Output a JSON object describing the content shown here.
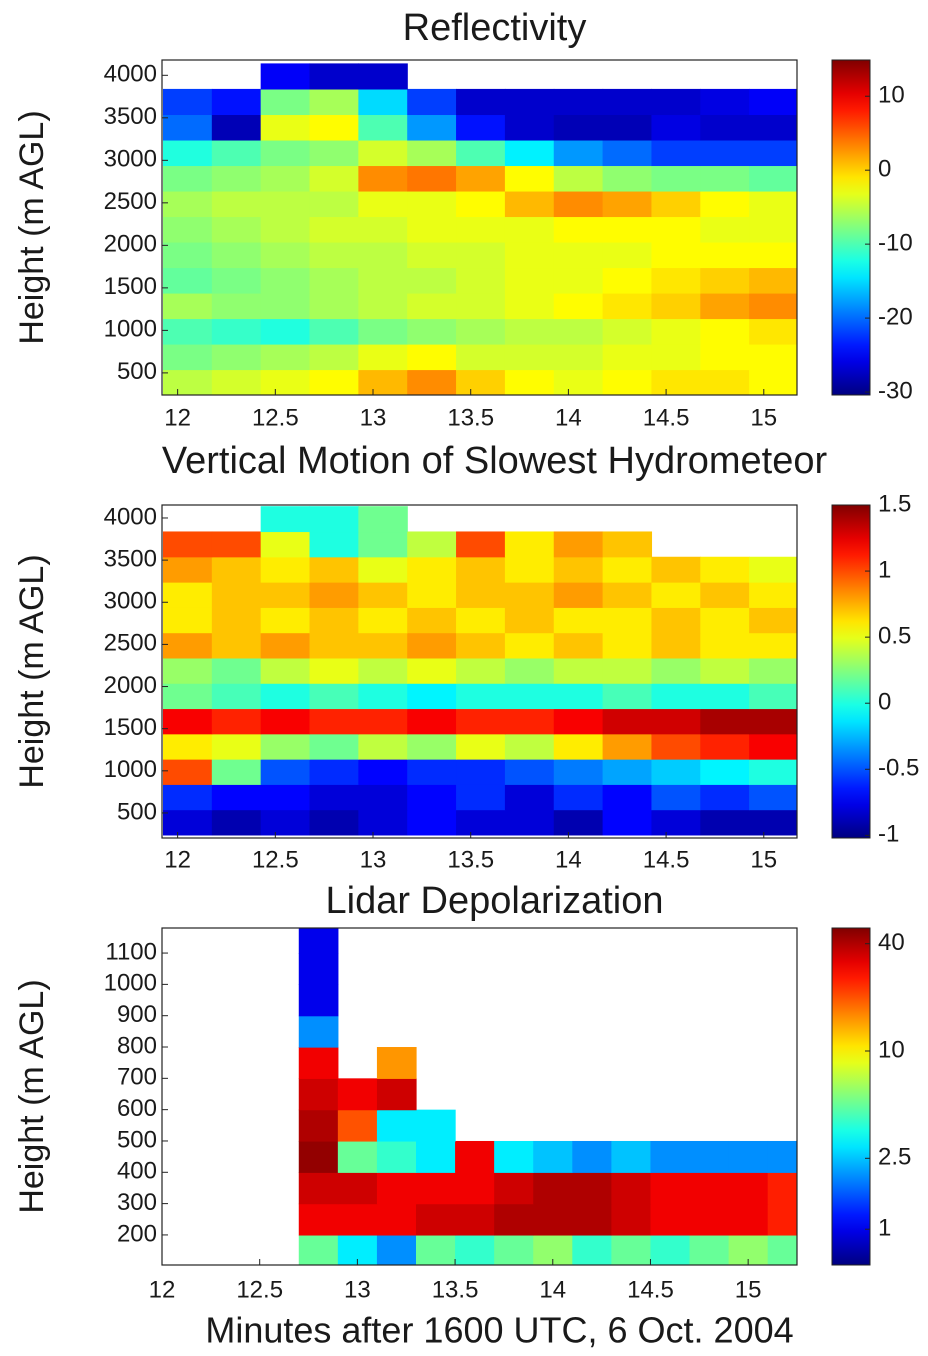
{
  "chart_data": [
    {
      "type": "heatmap",
      "title": "Reflectivity",
      "y_label": "Height (m AGL)",
      "colormap": "jet",
      "x": [
        12.05,
        12.3,
        12.55,
        12.8,
        13.05,
        13.3,
        13.55,
        13.8,
        14.05,
        14.3,
        14.55,
        14.8,
        15.05
      ],
      "y": [
        390,
        690,
        990,
        1290,
        1590,
        1890,
        2190,
        2490,
        2790,
        3090,
        3390,
        3690,
        3990
      ],
      "z": [
        [
          -5,
          -4,
          -3,
          -2,
          1,
          3,
          0,
          -2,
          -3,
          -2,
          -1,
          -1,
          -2
        ],
        [
          -8,
          -7,
          -6,
          -5,
          -3,
          -2,
          -4,
          -4,
          -4,
          -3,
          -3,
          -2,
          -2
        ],
        [
          -10,
          -11,
          -12,
          -10,
          -8,
          -7,
          -6,
          -5,
          -5,
          -4,
          -3,
          -2,
          -1
        ],
        [
          -6,
          -7,
          -7,
          -6,
          -5,
          -4,
          -4,
          -3,
          -2,
          -1,
          0,
          2,
          3
        ],
        [
          -9,
          -8,
          -7,
          -6,
          -5,
          -5,
          -4,
          -3,
          -3,
          -2,
          -1,
          0,
          1
        ],
        [
          -8,
          -7,
          -6,
          -5,
          -5,
          -4,
          -4,
          -3,
          -3,
          -3,
          -2,
          -2,
          -2
        ],
        [
          -7,
          -6,
          -5,
          -4,
          -4,
          -3,
          -3,
          -3,
          -2,
          -2,
          -2,
          -3,
          -3
        ],
        [
          -6,
          -5,
          -5,
          -5,
          -3,
          -3,
          -2,
          1,
          3,
          2,
          0,
          -2,
          -3
        ],
        [
          -8,
          -7,
          -6,
          -4,
          3,
          4,
          2,
          -2,
          -5,
          -7,
          -8,
          -8,
          -9
        ],
        [
          -12,
          -10,
          -8,
          -7,
          -4,
          -6,
          -10,
          -14,
          -18,
          -20,
          -22,
          -22,
          -22
        ],
        [
          -20,
          -28,
          -3,
          -2,
          -10,
          -18,
          -24,
          -27,
          -28,
          -28,
          -26,
          -27,
          -27
        ],
        [
          -22,
          -24,
          -8,
          -6,
          -15,
          -22,
          -27,
          -27,
          -27,
          -27,
          -27,
          -26,
          -25
        ],
        [
          null,
          null,
          -25,
          -27,
          -27,
          null,
          null,
          null,
          null,
          null,
          null,
          null,
          null
        ]
      ],
      "xlim": [
        11.92,
        15.17
      ],
      "ylim": [
        240,
        4180
      ],
      "xticks": [
        12,
        12.5,
        13,
        13.5,
        14,
        14.5,
        15
      ],
      "yticks": [
        500,
        1000,
        1500,
        2000,
        2500,
        3000,
        3500,
        4000
      ],
      "colorbar": {
        "clim": [
          -30.4,
          14.9
        ],
        "ticks": [
          -30,
          -20,
          -10,
          0,
          10
        ],
        "log_scale": false
      }
    },
    {
      "type": "heatmap",
      "title": "Vertical Motion of Slowest Hydrometeor",
      "y_label": "Height (m AGL)",
      "colormap": "jet",
      "x": [
        12.05,
        12.3,
        12.55,
        12.8,
        13.05,
        13.3,
        13.55,
        13.8,
        14.05,
        14.3,
        14.55,
        14.8,
        15.05
      ],
      "y": [
        390,
        690,
        990,
        1290,
        1590,
        1890,
        2190,
        2490,
        2790,
        3090,
        3390,
        3690,
        3990
      ],
      "z": [
        [
          -0.8,
          -0.9,
          -0.8,
          -0.9,
          -0.8,
          -0.7,
          -0.8,
          -0.8,
          -0.9,
          -0.7,
          -0.8,
          -0.9,
          -0.9
        ],
        [
          -0.6,
          -0.7,
          -0.7,
          -0.8,
          -0.8,
          -0.7,
          -0.6,
          -0.8,
          -0.6,
          -0.7,
          -0.5,
          -0.6,
          -0.5
        ],
        [
          1,
          0.2,
          -0.5,
          -0.6,
          -0.7,
          -0.6,
          -0.6,
          -0.5,
          -0.4,
          -0.3,
          -0.2,
          -0.1,
          0
        ],
        [
          0.6,
          0.5,
          0.3,
          0.2,
          0.4,
          0.3,
          0.5,
          0.4,
          0.6,
          0.8,
          1,
          1.1,
          1.2
        ],
        [
          1.2,
          1.1,
          1.2,
          1.1,
          1.1,
          1.2,
          1.1,
          1.1,
          1.2,
          1.3,
          1.3,
          1.4,
          1.4
        ],
        [
          0.2,
          0.1,
          0,
          0.1,
          0,
          -0.1,
          0,
          0,
          0,
          0.1,
          0,
          0,
          0.1
        ],
        [
          0.3,
          0.2,
          0.4,
          0.5,
          0.4,
          0.5,
          0.4,
          0.3,
          0.4,
          0.4,
          0.3,
          0.4,
          0.3
        ],
        [
          0.8,
          0.7,
          0.8,
          0.7,
          0.7,
          0.8,
          0.7,
          0.6,
          0.7,
          0.6,
          0.7,
          0.6,
          0.6
        ],
        [
          0.6,
          0.7,
          0.6,
          0.7,
          0.6,
          0.7,
          0.6,
          0.7,
          0.6,
          0.6,
          0.7,
          0.6,
          0.7
        ],
        [
          0.6,
          0.7,
          0.7,
          0.8,
          0.7,
          0.6,
          0.7,
          0.7,
          0.8,
          0.7,
          0.6,
          0.7,
          0.6
        ],
        [
          0.8,
          0.7,
          0.6,
          0.7,
          0.5,
          0.6,
          0.7,
          0.6,
          0.7,
          0.6,
          0.7,
          0.6,
          0.5
        ],
        [
          1,
          1,
          0.5,
          0,
          0.2,
          0.4,
          1,
          0.6,
          0.8,
          0.7,
          null,
          null,
          null
        ],
        [
          null,
          null,
          0,
          0,
          0.2,
          null,
          null,
          null,
          null,
          null,
          null,
          null,
          null
        ]
      ],
      "xlim": [
        11.92,
        15.17
      ],
      "ylim": [
        203,
        4154
      ],
      "xticks": [
        12,
        12.5,
        13,
        13.5,
        14,
        14.5,
        15
      ],
      "yticks": [
        500,
        1000,
        1500,
        2000,
        2500,
        3000,
        3500,
        4000
      ],
      "colorbar": {
        "clim": [
          -1.02,
          1.5
        ],
        "ticks": [
          -1,
          -0.5,
          0,
          0.5,
          1,
          1.5
        ],
        "log_scale": false
      }
    },
    {
      "type": "heatmap",
      "title": "Lidar Depolarization",
      "y_label": "Height (m AGL)",
      "x_label": "Minutes after 1600 UTC, 6 Oct. 2004",
      "colormap": "jet",
      "x": [
        12.8,
        13.0,
        13.2,
        13.4,
        13.6,
        13.8,
        14.0,
        14.2,
        14.4,
        14.6,
        14.8,
        15.0,
        15.2
      ],
      "y": [
        150,
        250,
        350,
        450,
        550,
        650,
        750,
        850,
        950,
        1050,
        1150
      ],
      "z": [
        [
          5,
          3,
          2,
          5,
          4,
          5,
          6,
          4,
          5,
          4,
          5,
          6,
          5
        ],
        [
          30,
          30,
          30,
          35,
          35,
          40,
          40,
          40,
          35,
          30,
          30,
          30,
          25
        ],
        [
          35,
          35,
          30,
          30,
          30,
          35,
          40,
          40,
          35,
          30,
          30,
          30,
          25
        ],
        [
          45,
          5,
          4,
          3,
          30,
          3,
          2.5,
          2,
          2.5,
          2,
          2,
          2,
          2
        ],
        [
          40,
          20,
          3,
          3,
          null,
          null,
          null,
          null,
          null,
          null,
          null,
          null,
          null
        ],
        [
          35,
          30,
          35,
          null,
          null,
          null,
          null,
          null,
          null,
          null,
          null,
          null,
          null
        ],
        [
          30,
          null,
          15,
          null,
          null,
          null,
          null,
          null,
          null,
          null,
          null,
          null,
          null
        ],
        [
          2,
          null,
          null,
          null,
          null,
          null,
          null,
          null,
          null,
          null,
          null,
          null,
          null
        ],
        [
          1,
          null,
          null,
          null,
          null,
          null,
          null,
          null,
          null,
          null,
          null,
          null,
          null
        ],
        [
          1,
          null,
          null,
          null,
          null,
          null,
          null,
          null,
          null,
          null,
          null,
          null,
          null
        ],
        [
          1,
          null,
          null,
          null,
          null,
          null,
          null,
          null,
          null,
          null,
          null,
          null,
          null
        ]
      ],
      "xlim": [
        12.0,
        15.25
      ],
      "ylim": [
        104,
        1180
      ],
      "xticks": [
        12,
        12.5,
        13,
        13.5,
        14,
        14.5,
        15
      ],
      "yticks": [
        200,
        300,
        400,
        500,
        600,
        700,
        800,
        900,
        1000,
        1100
      ],
      "colorbar": {
        "clim": [
          0.63,
          49
        ],
        "ticks": [
          1,
          2.5,
          10,
          40
        ],
        "log_scale": true
      }
    }
  ]
}
